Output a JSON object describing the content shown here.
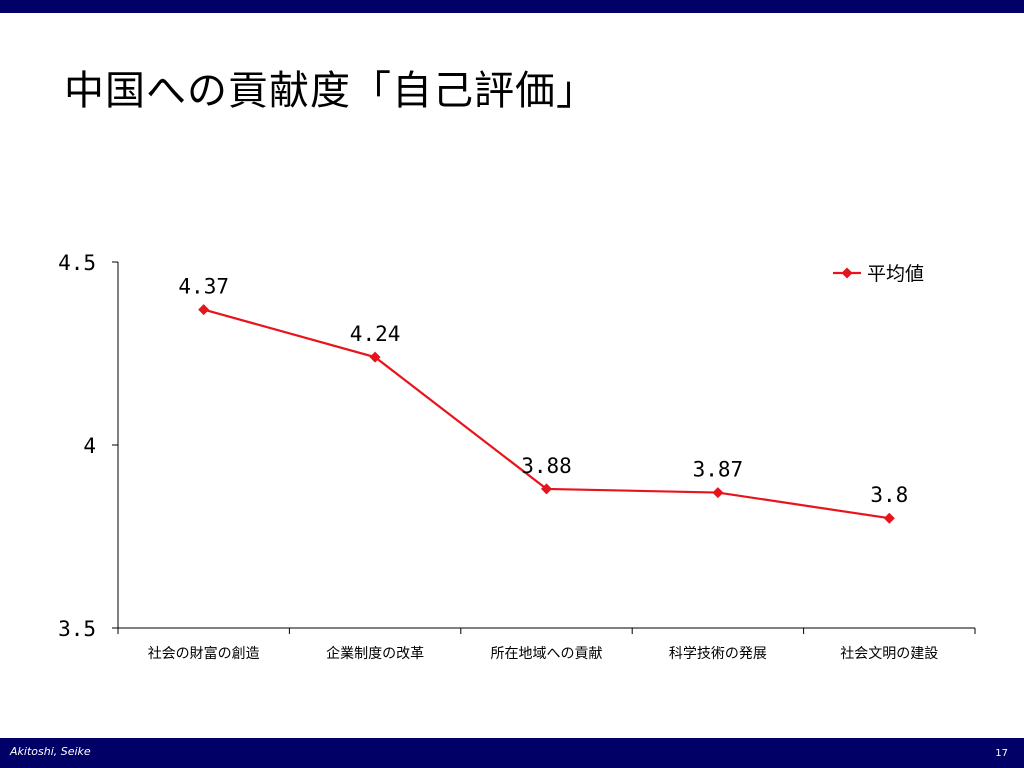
{
  "slide": {
    "title": "中国への貢献度「自己評価」",
    "author": "Akitoshi, Seike",
    "page_number": "17"
  },
  "colors": {
    "header_bar": "#000066",
    "series_line": "#e8141c",
    "axis": "#000000"
  },
  "chart_data": {
    "type": "line",
    "title": "",
    "xlabel": "",
    "ylabel": "",
    "categories": [
      "社会の財富の創造",
      "企業制度の改革",
      "所在地域への貢献",
      "科学技術の発展",
      "社会文明の建設"
    ],
    "series": [
      {
        "name": "平均値",
        "values": [
          4.37,
          4.24,
          3.88,
          3.87,
          3.8
        ],
        "labels": [
          "4.37",
          "4.24",
          "3.88",
          "3.87",
          "3.8"
        ]
      }
    ],
    "ylim": [
      3.5,
      4.5
    ],
    "yticks": [
      3.5,
      4,
      4.5
    ],
    "ytick_labels": [
      "3.5",
      "4",
      "4.5"
    ],
    "grid": false,
    "legend_position": "top-right",
    "marker": "diamond"
  }
}
